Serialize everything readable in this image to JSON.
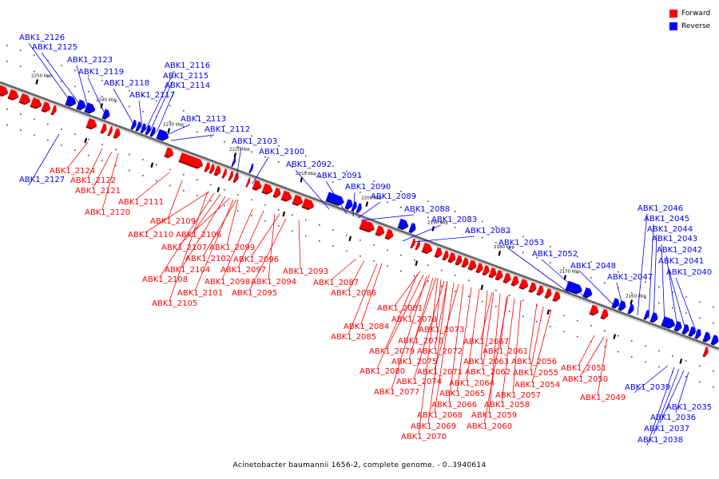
{
  "caption": "Acinetobacter baumannii 1656-2, complete genome. - 0..3940614",
  "legend": [
    {
      "label": "Forward",
      "color": "#ff0000"
    },
    {
      "label": "Reverse",
      "color": "#0000ff"
    }
  ],
  "colors": {
    "forward": "#ff0000",
    "reverse": "#0000ff",
    "backbone": "#666666"
  },
  "scale_labels": [
    "2250 kbp",
    "2240 kbp",
    "2230 kbp",
    "2220 kbp",
    "2210 kbp",
    "2200 kbp",
    "2190 kbp",
    "2180 kbp",
    "2170 kbp",
    "2160 kbp"
  ],
  "reverse_labels": [
    "ABK1_2126",
    "ABK1_2125",
    "ABK1_2123",
    "ABK1_2119",
    "ABK1_2118",
    "ABK1_2117",
    "ABK1_2116",
    "ABK1_2115",
    "ABK1_2114",
    "ABK1_2113",
    "ABK1_2112",
    "ABK1_2103",
    "ABK1_2100",
    "ABK1_2092",
    "ABK1_2091",
    "ABK1_2090",
    "ABK1_2089",
    "ABK1_2088",
    "ABK1_2083",
    "ABK1_2082",
    "ABK1_2053",
    "ABK1_2052",
    "ABK1_2048",
    "ABK1_2047",
    "ABK1_2046",
    "ABK1_2045",
    "ABK1_2044",
    "ABK1_2043",
    "ABK1_2042",
    "ABK1_2041",
    "ABK1_2040",
    "ABK1_2127",
    "ABK1_2039",
    "ABK1_2035",
    "ABK1_2036",
    "ABK1_2037",
    "ABK1_2038"
  ],
  "forward_labels": [
    "ABK1_2124",
    "ABK1_2122",
    "ABK1_2121",
    "ABK1_2120",
    "ABK1_2111",
    "ABK1_2109",
    "ABK1_2110",
    "ABK1_2106",
    "ABK1_2107",
    "ABK1_2099",
    "ABK1_2102",
    "ABK1_2096",
    "ABK1_2104",
    "ABK1_2097",
    "ABK1_2093",
    "ABK1_2108",
    "ABK1_2098",
    "ABK1_2094",
    "ABK1_2087",
    "ABK1_2101",
    "ABK1_2095",
    "ABK1_2086",
    "ABK1_2105",
    "ABK1_2081",
    "ABK1_2078",
    "ABK1_2084",
    "ABK1_2073",
    "ABK1_2085",
    "ABK1_2076",
    "ABK1_2067",
    "ABK1_2079",
    "ABK1_2072",
    "ABK1_2061",
    "ABK1_2075",
    "ABK1_2063",
    "ABK1_2056",
    "ABK1_2080",
    "ABK1_2071",
    "ABK1_2062",
    "ABK1_2055",
    "ABK1_2074",
    "ABK1_2064",
    "ABK1_2054",
    "ABK1_2077",
    "ABK1_2065",
    "ABK1_2057",
    "ABK1_2066",
    "ABK1_2058",
    "ABK1_2068",
    "ABK1_2059",
    "ABK1_2069",
    "ABK1_2060",
    "ABK1_2070",
    "ABK1_2051",
    "ABK1_2050",
    "ABK1_2049"
  ]
}
